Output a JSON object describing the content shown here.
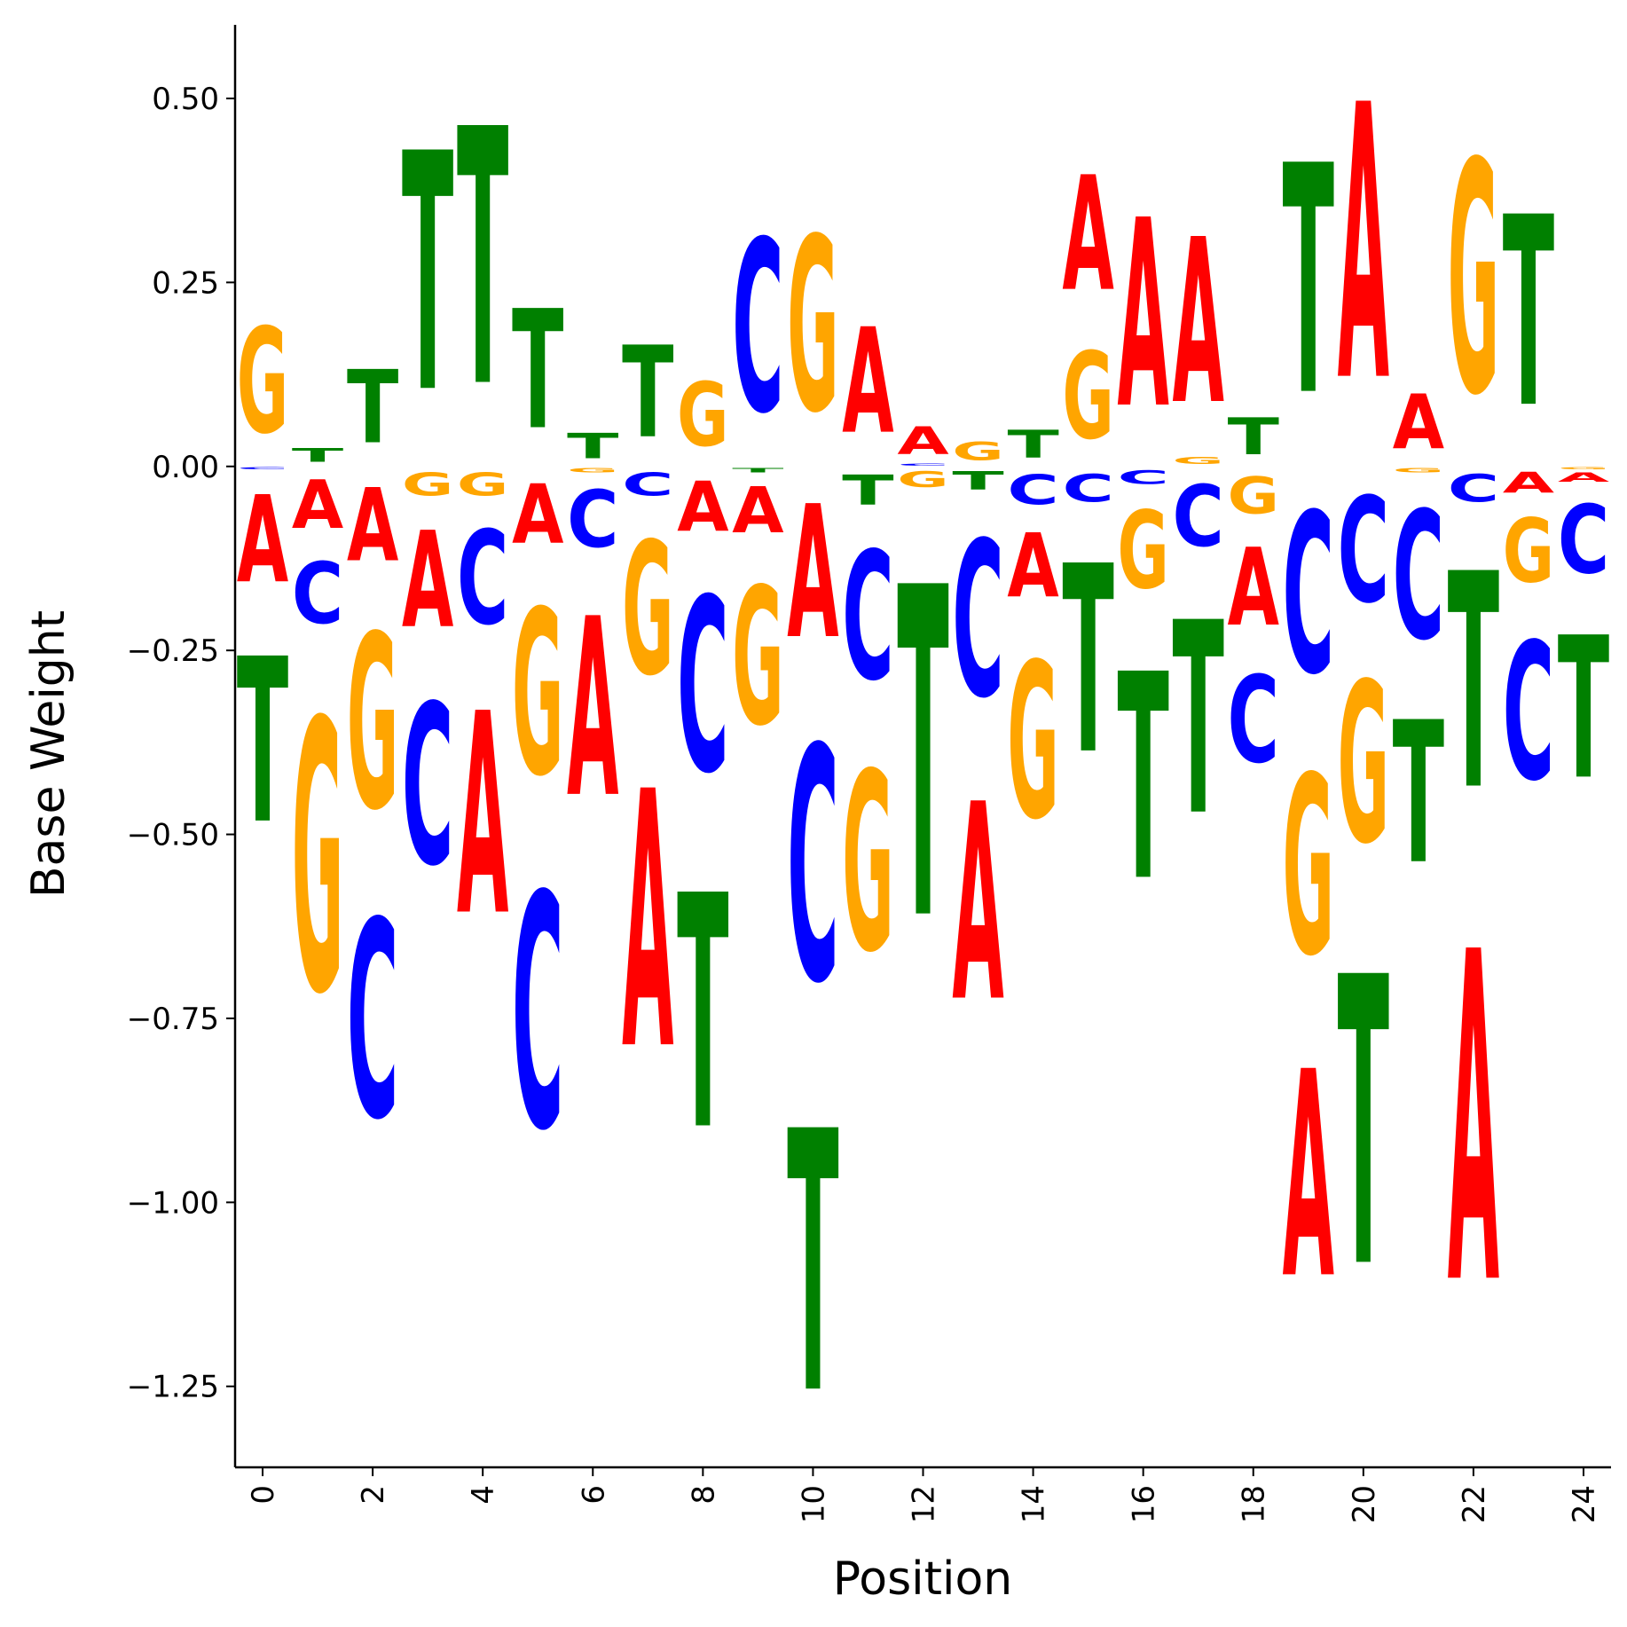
{
  "chart_data": {
    "type": "logo",
    "title": "",
    "xlabel": "Position",
    "ylabel": "Base Weight",
    "ylim": [
      -1.36,
      0.6
    ],
    "xlim": [
      -0.5,
      24.5
    ],
    "x_ticks": [
      "0",
      "2",
      "4",
      "6",
      "8",
      "10",
      "12",
      "14",
      "16",
      "18",
      "20",
      "22",
      "24"
    ],
    "y_ticks": [
      "0.50",
      "0.25",
      "0.00",
      "−0.25",
      "−0.50",
      "−0.75",
      "−1.00",
      "−1.25"
    ],
    "y_tick_values": [
      0.5,
      0.25,
      0.0,
      -0.25,
      -0.5,
      -0.75,
      -1.0,
      -1.25
    ],
    "colors": {
      "A": "#ff0000",
      "C": "#0000ff",
      "G": "#ffa500",
      "T": "#008000"
    },
    "positions": [
      {
        "pos": 0,
        "A": -0.19,
        "C": -0.005,
        "G": 0.23,
        "T": -0.36
      },
      {
        "pos": 1,
        "A": -0.105,
        "C": -0.135,
        "G": -0.59,
        "T": 0.03
      },
      {
        "pos": 2,
        "A": -0.16,
        "C": -0.43,
        "G": -0.38,
        "T": 0.16
      },
      {
        "pos": 3,
        "A": -0.21,
        "C": -0.35,
        "G": -0.05,
        "T": 0.52
      },
      {
        "pos": 4,
        "A": -0.44,
        "C": -0.205,
        "G": -0.05,
        "T": 0.56
      },
      {
        "pos": 5,
        "A": -0.13,
        "C": -0.51,
        "G": -0.36,
        "T": 0.26
      },
      {
        "pos": 6,
        "A": -0.39,
        "C": -0.125,
        "G": -0.01,
        "T": 0.055
      },
      {
        "pos": 7,
        "A": -0.56,
        "C": -0.05,
        "G": -0.29,
        "T": 0.2
      },
      {
        "pos": 8,
        "A": -0.11,
        "C": -0.38,
        "G": 0.14,
        "T": -0.51
      },
      {
        "pos": 9,
        "A": -0.1,
        "C": 0.375,
        "G": -0.3,
        "T": -0.01
      },
      {
        "pos": 10,
        "A": -0.29,
        "C": -0.51,
        "G": 0.38,
        "T": -0.57
      },
      {
        "pos": 11,
        "A": 0.23,
        "C": -0.28,
        "G": -0.39,
        "T": -0.065
      },
      {
        "pos": 12,
        "A": 0.06,
        "C": 0.005,
        "G": -0.035,
        "T": -0.72
      },
      {
        "pos": 13,
        "A": -0.43,
        "C": -0.34,
        "G": 0.04,
        "T": -0.04
      },
      {
        "pos": 14,
        "A": -0.14,
        "C": -0.065,
        "G": -0.34,
        "T": 0.06
      },
      {
        "pos": 15,
        "A": 0.25,
        "C": -0.06,
        "G": 0.19,
        "T": -0.41
      },
      {
        "pos": 16,
        "A": 0.41,
        "C": -0.03,
        "G": -0.17,
        "T": -0.45
      },
      {
        "pos": 17,
        "A": 0.36,
        "C": -0.135,
        "G": 0.015,
        "T": -0.42
      },
      {
        "pos": 18,
        "A": -0.17,
        "C": -0.19,
        "G": -0.08,
        "T": 0.08
      },
      {
        "pos": 19,
        "A": -0.45,
        "C": -0.35,
        "G": -0.39,
        "T": 0.5
      },
      {
        "pos": 20,
        "A": 0.6,
        "C": -0.23,
        "G": -0.35,
        "T": -0.63
      },
      {
        "pos": 21,
        "A": 0.12,
        "C": -0.28,
        "G": -0.01,
        "T": -0.31
      },
      {
        "pos": 22,
        "A": -0.72,
        "C": -0.06,
        "G": 0.505,
        "T": -0.47
      },
      {
        "pos": 23,
        "A": -0.045,
        "C": -0.3,
        "G": -0.14,
        "T": 0.415
      },
      {
        "pos": 24,
        "A": -0.02,
        "C": -0.15,
        "G": -0.005,
        "T": -0.31
      }
    ]
  }
}
